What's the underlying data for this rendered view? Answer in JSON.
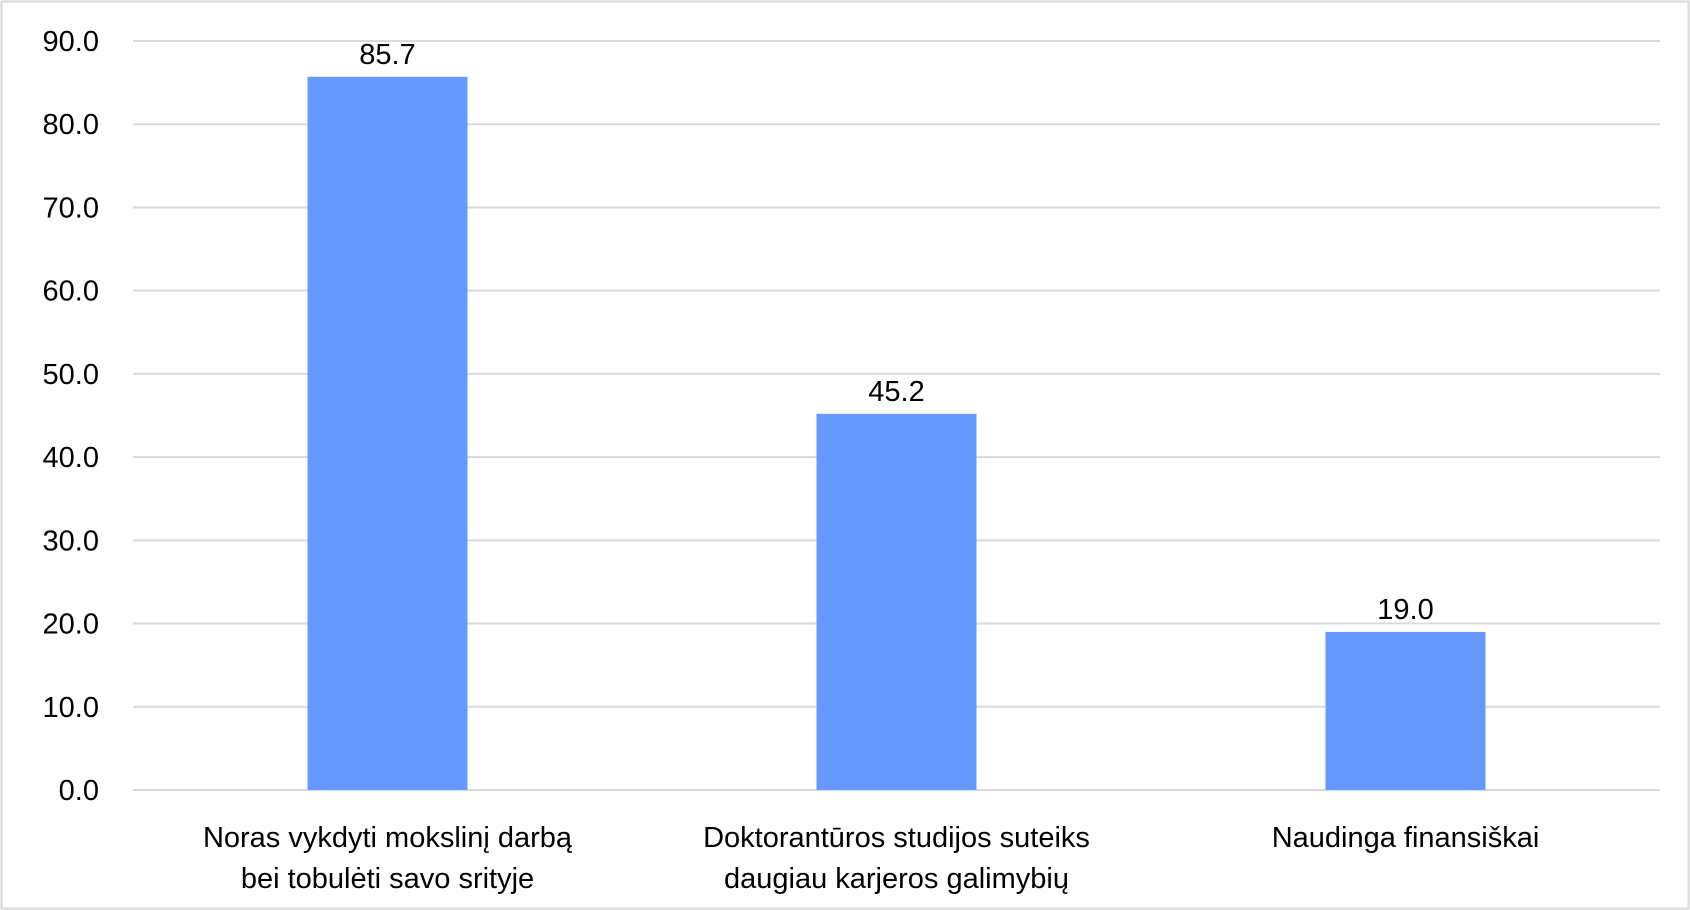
{
  "chart_data": {
    "type": "bar",
    "categories": [
      [
        "Noras vykdyti mokslinį darbą",
        "bei tobulėti savo srityje"
      ],
      [
        "Doktorantūros studijos suteiks",
        "daugiau karjeros galimybių"
      ],
      [
        "Naudinga finansiškai"
      ]
    ],
    "values": [
      85.7,
      45.2,
      19.0
    ],
    "data_labels": [
      "85.7",
      "45.2",
      "19.0"
    ],
    "y_ticks": [
      "0.0",
      "10.0",
      "20.0",
      "30.0",
      "40.0",
      "50.0",
      "60.0",
      "70.0",
      "80.0",
      "90.0"
    ],
    "ylim": [
      0,
      90
    ],
    "grid": true,
    "legend": "none",
    "bar_color": "#6699ff",
    "grid_color": "#d9d9d9",
    "frame_color": "#d9d9d9"
  }
}
